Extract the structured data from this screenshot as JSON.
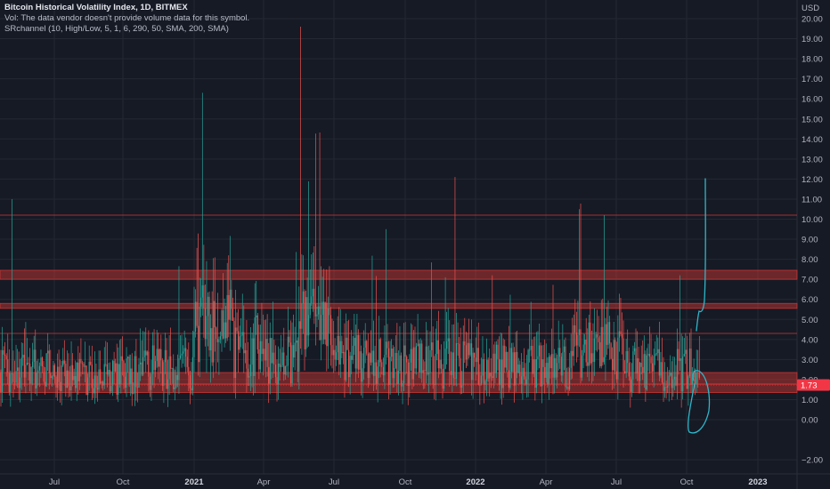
{
  "legend": {
    "title": "Bitcoin Historical Volatility Index, 1D, BITMEX",
    "vol_note": "Vol: The data vendor doesn't provide volume data for this symbol.",
    "indicator": "SRchannel (10, High/Low, 5, 1, 6, 290, 50, SMA, 200, SMA)"
  },
  "price_axis": {
    "currency": "USD",
    "ticks": [
      "20.00",
      "19.00",
      "18.00",
      "17.00",
      "16.00",
      "15.00",
      "14.00",
      "13.00",
      "12.00",
      "11.00",
      "10.00",
      "9.00",
      "8.00",
      "7.00",
      "6.00",
      "5.00",
      "4.00",
      "3.00",
      "2.00",
      "1.00",
      "0.00",
      "−2.00"
    ],
    "current_value": "1.73",
    "current_color": "#f23645"
  },
  "colors": {
    "up": "#26a69a",
    "down": "#ef5350",
    "zone": "#e53935",
    "drawing": "#2fb5c8",
    "background": "#161a25"
  },
  "chart_data": {
    "type": "candlestick",
    "symbol": "Bitcoin Historical Volatility Index",
    "interval": "1D",
    "exchange": "BITMEX",
    "ylim": [
      -2.6,
      20.5
    ],
    "x_tick_labels": [
      "Jul",
      "Oct",
      "2021",
      "Apr",
      "Jul",
      "Oct",
      "2022",
      "Apr",
      "Jul",
      "Oct",
      "2023"
    ],
    "y_tick_values": [
      20,
      19,
      18,
      17,
      16,
      15,
      14,
      13,
      12,
      11,
      10,
      9,
      8,
      7,
      6,
      5,
      4,
      3,
      2,
      1,
      0,
      -2
    ],
    "last_value": 1.73,
    "spikes": [
      {
        "near": "2020-05",
        "high": 11.0
      },
      {
        "near": "2021-01",
        "high": 16.3
      },
      {
        "near": "2021-05",
        "high": 19.6
      },
      {
        "near": "2021-09",
        "high": 9.5
      },
      {
        "near": "2021-12",
        "high": 12.1
      },
      {
        "near": "2022-03",
        "high": 7.2
      },
      {
        "near": "2022-05",
        "high": 10.5
      },
      {
        "near": "2022-06",
        "high": 10.2
      },
      {
        "near": "2022-09",
        "high": 7.2
      }
    ],
    "sr_zones": [
      {
        "from": 7.0,
        "to": 7.45
      },
      {
        "from": 5.55,
        "to": 5.8
      },
      {
        "from": 1.8,
        "to": 2.35
      },
      {
        "from": 1.35,
        "to": 1.75
      }
    ],
    "sr_lines": [
      10.2,
      4.3
    ]
  }
}
